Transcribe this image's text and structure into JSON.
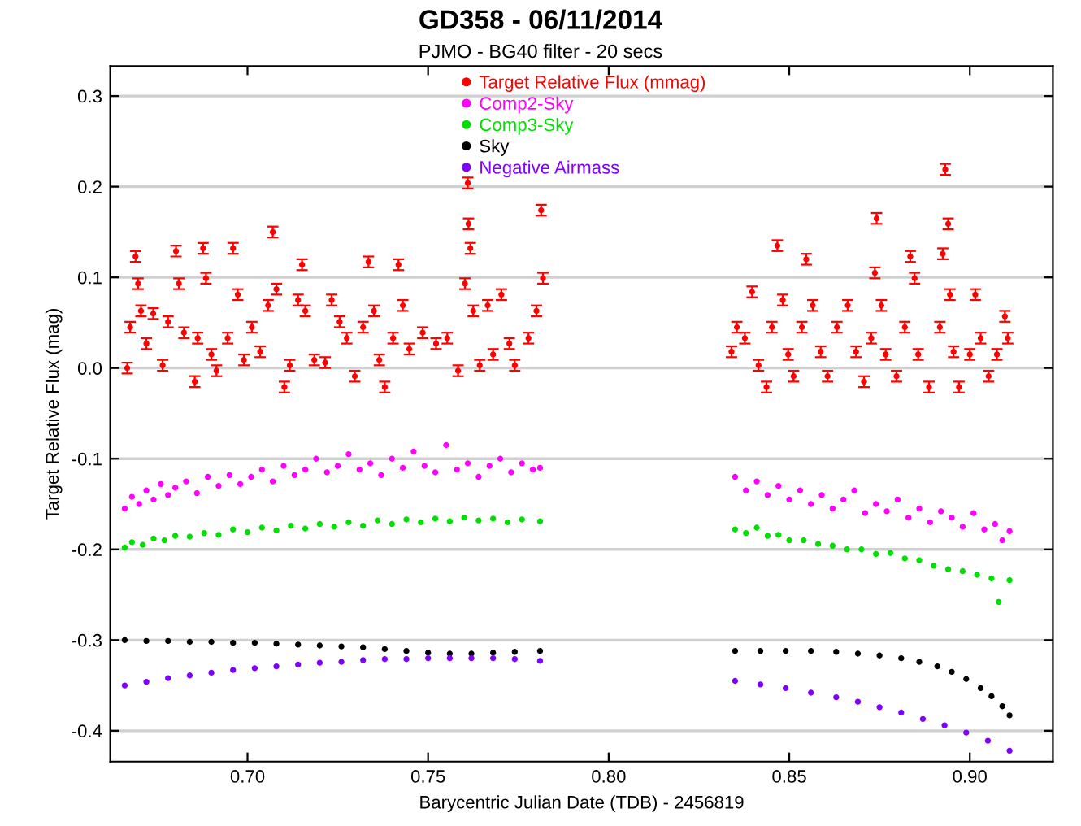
{
  "chart_data": {
    "type": "scatter",
    "title": "GD358 - 06/11/2014",
    "subtitle": "PJMO - BG40 filter - 20 secs",
    "xlabel": "Barycentric Julian Date (TDB) - 2456819",
    "ylabel": "Target Relative Flux (mag)",
    "xlim": [
      0.662,
      0.923
    ],
    "ylim": [
      -0.434,
      0.333
    ],
    "xticks": [
      {
        "value": 0.7,
        "label": "0.70"
      },
      0.75,
      {
        "value": 0.8,
        "label": "0.80"
      },
      0.85,
      {
        "value": 0.9,
        "label": "0.90"
      }
    ],
    "yticks": [
      -0.4,
      -0.3,
      -0.2,
      -0.1,
      {
        "value": 0,
        "label": "0.0"
      },
      0.1,
      0.2,
      0.3
    ],
    "grid": "y",
    "legend": "top",
    "marker": "circle",
    "series": [
      {
        "name": "Target Relative Flux (mmag)",
        "color": "#ff0000",
        "x": [
          0.6667,
          0.6675,
          0.669,
          0.6697,
          0.6705,
          0.672,
          0.6739,
          0.6765,
          0.678,
          0.6802,
          0.681,
          0.6824,
          0.6854,
          0.6862,
          0.6877,
          0.6885,
          0.69,
          0.6914,
          0.6945,
          0.696,
          0.6973,
          0.699,
          0.7012,
          0.7035,
          0.7057,
          0.707,
          0.708,
          0.7102,
          0.7117,
          0.714,
          0.7151,
          0.716,
          0.7185,
          0.7215,
          0.7233,
          0.7255,
          0.7275,
          0.7297,
          0.732,
          0.7335,
          0.735,
          0.7365,
          0.738,
          0.7403,
          0.7418,
          0.743,
          0.7448,
          0.7485,
          0.7522,
          0.7553,
          0.7583,
          0.7602,
          0.761,
          0.7612,
          0.7617,
          0.7625,
          0.7643,
          0.7665,
          0.768,
          0.7703,
          0.7725,
          0.774,
          0.7778,
          0.78,
          0.7813,
          0.7818,
          0.834,
          0.8355,
          0.8377,
          0.8397,
          0.8415,
          0.8437,
          0.8452,
          0.8467,
          0.8482,
          0.8497,
          0.8512,
          0.8535,
          0.8547,
          0.8565,
          0.8587,
          0.8606,
          0.8632,
          0.8662,
          0.8685,
          0.8707,
          0.8727,
          0.8737,
          0.8742,
          0.8755,
          0.8767,
          0.8797,
          0.882,
          0.8835,
          0.8847,
          0.8857,
          0.8887,
          0.8917,
          0.8925,
          0.8932,
          0.894,
          0.8945,
          0.8955,
          0.897,
          0.9,
          0.9015,
          0.903,
          0.9052,
          0.9075,
          0.9097,
          0.9105
        ],
        "values": [
          0.0,
          0.045,
          0.123,
          0.093,
          0.063,
          0.027,
          0.06,
          0.003,
          0.051,
          0.129,
          0.093,
          0.039,
          -0.015,
          0.033,
          0.132,
          0.099,
          0.015,
          -0.003,
          0.033,
          0.132,
          0.081,
          0.009,
          0.045,
          0.018,
          0.069,
          0.15,
          0.087,
          -0.021,
          0.003,
          0.075,
          0.114,
          0.063,
          0.009,
          0.006,
          0.075,
          0.051,
          0.033,
          -0.009,
          0.045,
          0.117,
          0.063,
          0.009,
          -0.021,
          0.033,
          0.114,
          0.069,
          0.021,
          0.039,
          0.027,
          0.033,
          -0.003,
          0.093,
          0.204,
          0.159,
          0.132,
          0.063,
          0.003,
          0.069,
          0.015,
          0.081,
          0.027,
          0.003,
          0.033,
          0.063,
          0.174,
          0.099,
          0.018,
          0.045,
          0.033,
          0.084,
          0.003,
          -0.021,
          0.045,
          0.135,
          0.075,
          0.015,
          -0.009,
          0.045,
          0.12,
          0.069,
          0.018,
          -0.009,
          0.045,
          0.069,
          0.018,
          -0.015,
          0.033,
          0.105,
          0.165,
          0.069,
          0.015,
          -0.009,
          0.045,
          0.123,
          0.099,
          0.015,
          -0.021,
          0.045,
          0.126,
          0.219,
          0.159,
          0.081,
          0.018,
          -0.021,
          0.015,
          0.081,
          0.033,
          -0.009,
          0.015,
          0.057,
          0.033
        ],
        "errors": [
          0.006,
          0.006,
          0.006,
          0.006,
          0.006,
          0.006,
          0.006,
          0.006,
          0.006,
          0.006,
          0.006,
          0.006,
          0.006,
          0.006,
          0.006,
          0.006,
          0.006,
          0.006,
          0.006,
          0.006,
          0.006,
          0.006,
          0.006,
          0.006,
          0.006,
          0.006,
          0.006,
          0.006,
          0.006,
          0.006,
          0.006,
          0.006,
          0.006,
          0.006,
          0.006,
          0.006,
          0.006,
          0.006,
          0.006,
          0.006,
          0.006,
          0.006,
          0.006,
          0.006,
          0.006,
          0.006,
          0.006,
          0.006,
          0.006,
          0.006,
          0.006,
          0.006,
          0.006,
          0.006,
          0.006,
          0.006,
          0.006,
          0.006,
          0.006,
          0.006,
          0.006,
          0.006,
          0.006,
          0.006,
          0.006,
          0.006,
          0.006,
          0.006,
          0.006,
          0.006,
          0.006,
          0.006,
          0.006,
          0.006,
          0.006,
          0.006,
          0.006,
          0.006,
          0.006,
          0.006,
          0.006,
          0.006,
          0.006,
          0.006,
          0.006,
          0.006,
          0.006,
          0.006,
          0.006,
          0.006,
          0.006,
          0.006,
          0.006,
          0.006,
          0.006,
          0.006,
          0.006,
          0.006,
          0.006,
          0.006,
          0.006,
          0.006,
          0.006,
          0.006,
          0.006,
          0.006,
          0.006,
          0.006,
          0.006,
          0.006,
          0.006
        ]
      },
      {
        "name": "Comp2-Sky",
        "color": "#ff00ff",
        "x": [
          0.666,
          0.668,
          0.67,
          0.672,
          0.674,
          0.676,
          0.678,
          0.68,
          0.683,
          0.686,
          0.689,
          0.692,
          0.695,
          0.698,
          0.701,
          0.704,
          0.707,
          0.71,
          0.713,
          0.716,
          0.719,
          0.722,
          0.725,
          0.728,
          0.731,
          0.734,
          0.737,
          0.74,
          0.743,
          0.746,
          0.749,
          0.752,
          0.755,
          0.758,
          0.761,
          0.764,
          0.767,
          0.77,
          0.773,
          0.776,
          0.779,
          0.781,
          0.835,
          0.838,
          0.841,
          0.844,
          0.847,
          0.85,
          0.853,
          0.856,
          0.859,
          0.862,
          0.865,
          0.868,
          0.871,
          0.874,
          0.877,
          0.88,
          0.883,
          0.886,
          0.889,
          0.892,
          0.895,
          0.898,
          0.901,
          0.904,
          0.907,
          0.909,
          0.911
        ],
        "values": [
          -0.155,
          -0.142,
          -0.15,
          -0.135,
          -0.145,
          -0.128,
          -0.14,
          -0.132,
          -0.125,
          -0.138,
          -0.12,
          -0.13,
          -0.118,
          -0.128,
          -0.12,
          -0.112,
          -0.125,
          -0.108,
          -0.118,
          -0.112,
          -0.1,
          -0.115,
          -0.108,
          -0.095,
          -0.112,
          -0.105,
          -0.118,
          -0.1,
          -0.11,
          -0.092,
          -0.108,
          -0.115,
          -0.085,
          -0.112,
          -0.105,
          -0.12,
          -0.108,
          -0.1,
          -0.115,
          -0.105,
          -0.112,
          -0.11,
          -0.12,
          -0.135,
          -0.125,
          -0.14,
          -0.13,
          -0.145,
          -0.135,
          -0.15,
          -0.14,
          -0.155,
          -0.145,
          -0.135,
          -0.16,
          -0.15,
          -0.158,
          -0.145,
          -0.165,
          -0.155,
          -0.17,
          -0.158,
          -0.165,
          -0.175,
          -0.16,
          -0.178,
          -0.172,
          -0.19,
          -0.18
        ]
      },
      {
        "name": "Comp3-Sky",
        "color": "#00e000",
        "x": [
          0.666,
          0.668,
          0.671,
          0.674,
          0.677,
          0.68,
          0.684,
          0.688,
          0.692,
          0.696,
          0.7,
          0.704,
          0.708,
          0.712,
          0.716,
          0.72,
          0.724,
          0.728,
          0.732,
          0.736,
          0.74,
          0.744,
          0.748,
          0.752,
          0.756,
          0.76,
          0.764,
          0.768,
          0.772,
          0.776,
          0.781,
          0.835,
          0.838,
          0.841,
          0.844,
          0.847,
          0.85,
          0.854,
          0.858,
          0.862,
          0.866,
          0.87,
          0.874,
          0.878,
          0.882,
          0.886,
          0.89,
          0.894,
          0.898,
          0.902,
          0.906,
          0.908,
          0.911
        ],
        "values": [
          -0.198,
          -0.192,
          -0.195,
          -0.188,
          -0.19,
          -0.185,
          -0.186,
          -0.182,
          -0.184,
          -0.178,
          -0.181,
          -0.176,
          -0.179,
          -0.174,
          -0.177,
          -0.172,
          -0.175,
          -0.17,
          -0.174,
          -0.168,
          -0.172,
          -0.167,
          -0.17,
          -0.166,
          -0.169,
          -0.165,
          -0.168,
          -0.166,
          -0.17,
          -0.167,
          -0.169,
          -0.178,
          -0.182,
          -0.176,
          -0.185,
          -0.184,
          -0.19,
          -0.19,
          -0.194,
          -0.196,
          -0.2,
          -0.2,
          -0.205,
          -0.204,
          -0.21,
          -0.212,
          -0.218,
          -0.222,
          -0.224,
          -0.228,
          -0.232,
          -0.258,
          -0.234
        ]
      },
      {
        "name": "Sky",
        "color": "#000000",
        "x": [
          0.666,
          0.672,
          0.678,
          0.684,
          0.69,
          0.696,
          0.702,
          0.708,
          0.714,
          0.72,
          0.726,
          0.732,
          0.738,
          0.744,
          0.75,
          0.756,
          0.762,
          0.768,
          0.774,
          0.781,
          0.835,
          0.842,
          0.849,
          0.856,
          0.863,
          0.869,
          0.875,
          0.881,
          0.886,
          0.891,
          0.895,
          0.899,
          0.903,
          0.906,
          0.909,
          0.911
        ],
        "values": [
          -0.3,
          -0.301,
          -0.301,
          -0.302,
          -0.302,
          -0.303,
          -0.303,
          -0.304,
          -0.305,
          -0.306,
          -0.307,
          -0.308,
          -0.31,
          -0.312,
          -0.314,
          -0.315,
          -0.315,
          -0.314,
          -0.313,
          -0.312,
          -0.312,
          -0.312,
          -0.312,
          -0.312,
          -0.313,
          -0.315,
          -0.317,
          -0.32,
          -0.324,
          -0.329,
          -0.335,
          -0.343,
          -0.353,
          -0.362,
          -0.373,
          -0.383
        ]
      },
      {
        "name": "Negative Airmass",
        "color": "#8000ff",
        "x": [
          0.666,
          0.672,
          0.678,
          0.684,
          0.69,
          0.696,
          0.702,
          0.708,
          0.714,
          0.72,
          0.726,
          0.732,
          0.738,
          0.744,
          0.75,
          0.756,
          0.762,
          0.768,
          0.774,
          0.781,
          0.835,
          0.842,
          0.849,
          0.856,
          0.863,
          0.869,
          0.875,
          0.881,
          0.887,
          0.893,
          0.899,
          0.905,
          0.911
        ],
        "values": [
          -0.35,
          -0.346,
          -0.342,
          -0.339,
          -0.336,
          -0.333,
          -0.331,
          -0.329,
          -0.327,
          -0.325,
          -0.324,
          -0.322,
          -0.321,
          -0.321,
          -0.32,
          -0.32,
          -0.32,
          -0.32,
          -0.321,
          -0.323,
          -0.345,
          -0.349,
          -0.353,
          -0.358,
          -0.363,
          -0.368,
          -0.374,
          -0.38,
          -0.387,
          -0.394,
          -0.402,
          -0.411,
          -0.422
        ]
      }
    ]
  }
}
